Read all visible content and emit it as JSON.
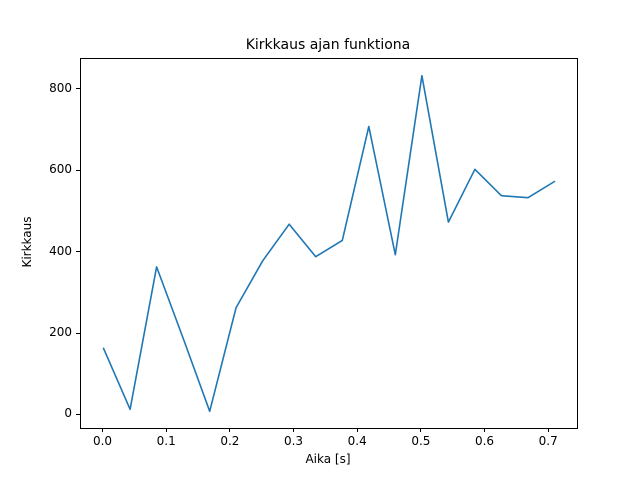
{
  "chart_data": {
    "type": "line",
    "title": "Kirkkaus ajan funktiona",
    "xlabel": "Aika [s]",
    "ylabel": "Kirkkaus",
    "x": [
      0.0,
      0.0417,
      0.0833,
      0.125,
      0.1667,
      0.2083,
      0.25,
      0.2917,
      0.3333,
      0.375,
      0.4167,
      0.4583,
      0.5,
      0.5417,
      0.5833,
      0.625,
      0.6667,
      0.7083
    ],
    "y": [
      165,
      15,
      365,
      190,
      10,
      265,
      380,
      470,
      390,
      430,
      710,
      395,
      835,
      475,
      605,
      540,
      535,
      575
    ],
    "xticks": [
      0.0,
      0.1,
      0.2,
      0.3,
      0.4,
      0.5,
      0.6,
      0.7
    ],
    "xtick_labels": [
      "0.0",
      "0.1",
      "0.2",
      "0.3",
      "0.4",
      "0.5",
      "0.6",
      "0.7"
    ],
    "yticks": [
      0,
      200,
      400,
      600,
      800
    ],
    "ytick_labels": [
      "0",
      "200",
      "400",
      "600",
      "800"
    ],
    "xlim": [
      -0.0354,
      0.7437
    ],
    "ylim": [
      -31,
      876
    ],
    "line_color": "#1f77b4",
    "line_width": 1.6,
    "grid": false,
    "legend": null,
    "background_color": "#ffffff"
  }
}
